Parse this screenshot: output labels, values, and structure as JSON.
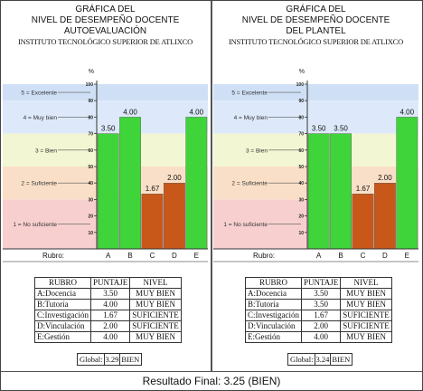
{
  "panels": [
    {
      "title_lines": [
        "GRÁFICA DEL",
        "NIVEL DE DESEMPEÑO DOCENTE",
        "AUTOEVALUACIÓN"
      ],
      "institution": "INSTITUTO TECNOLÓGICO SUPERIOR DE ATLIXCO",
      "table": {
        "headers": [
          "RUBRO",
          "PUNTAJE",
          "NIVEL"
        ],
        "rows": [
          [
            "A:Docencia",
            "3.50",
            "MUY BIEN"
          ],
          [
            "B:Tutoría",
            "4.00",
            "MUY BIEN"
          ],
          [
            "C:Investigación",
            "1.67",
            "SUFICIENTE"
          ],
          [
            "D:Vinculación",
            "2.00",
            "SUFICIENTE"
          ],
          [
            "E:Gestión",
            "4.00",
            "MUY BIEN"
          ]
        ]
      },
      "global": {
        "label": "Global:",
        "value": "3.29",
        "level": "BIEN"
      }
    },
    {
      "title_lines": [
        "GRÁFICA DEL",
        "NIVEL DE DESEMPEÑO DOCENTE",
        "DEL PLANTEL"
      ],
      "institution": "INSTITUTO TECNOLÓGICO SUPERIOR DE ATLIXCO",
      "table": {
        "headers": [
          "RUBRO",
          "PUNTAJE",
          "NIVEL"
        ],
        "rows": [
          [
            "A:Docencia",
            "3.50",
            "MUY BIEN"
          ],
          [
            "B:Tutoría",
            "3.50",
            "MUY BIEN"
          ],
          [
            "C:Investigación",
            "1.67",
            "SUFICIENTE"
          ],
          [
            "D:Vinculación",
            "2.00",
            "SUFICIENTE"
          ],
          [
            "E:Gestión",
            "4.00",
            "MUY BIEN"
          ]
        ]
      },
      "global": {
        "label": "Global:",
        "value": "3.24",
        "level": "BIEN"
      }
    }
  ],
  "final_result": "Resultado Final: 3.25 (BIEN)",
  "chart_data": [
    {
      "type": "bar",
      "categories": [
        "A",
        "B",
        "C",
        "D",
        "E"
      ],
      "values": [
        3.5,
        4.0,
        1.67,
        2.0,
        4.0
      ],
      "value_labels": [
        "3.50",
        "4.00",
        "1.67",
        "2.00",
        "4.00"
      ],
      "xlabel": "Rubro:",
      "ylabel": "%",
      "ylim": [
        0,
        100
      ],
      "y_per_score": 20,
      "yticks": [
        10,
        20,
        30,
        40,
        50,
        60,
        70,
        80,
        90,
        100
      ],
      "bands": [
        {
          "label": "5 = Excelente",
          "from": 90,
          "to": 100,
          "color": "#cfe0f6"
        },
        {
          "label": "4 = Muy bien",
          "from": 70,
          "to": 90,
          "color": "#dde9fa"
        },
        {
          "label": "3 = Bien",
          "from": 50,
          "to": 70,
          "color": "#f3f6d2"
        },
        {
          "label": "2 = Suficiente",
          "from": 30,
          "to": 50,
          "color": "#f9dfc7"
        },
        {
          "label": "1 = No suficiente",
          "from": 0,
          "to": 30,
          "color": "#f8cfcf"
        }
      ],
      "high_color": "#3fd43a",
      "low_color": "#c8581a"
    },
    {
      "type": "bar",
      "categories": [
        "A",
        "B",
        "C",
        "D",
        "E"
      ],
      "values": [
        3.5,
        3.5,
        1.67,
        2.0,
        4.0
      ],
      "value_labels": [
        "3.50",
        "3.50",
        "1.67",
        "2.00",
        "4.00"
      ],
      "xlabel": "Rubro:",
      "ylabel": "%",
      "ylim": [
        0,
        100
      ],
      "y_per_score": 20,
      "yticks": [
        10,
        20,
        30,
        40,
        50,
        60,
        70,
        80,
        90,
        100
      ],
      "bands": [
        {
          "label": "5 = Excelente",
          "from": 90,
          "to": 100,
          "color": "#cfe0f6"
        },
        {
          "label": "4 = Muy bien",
          "from": 70,
          "to": 90,
          "color": "#dde9fa"
        },
        {
          "label": "3 = Bien",
          "from": 50,
          "to": 70,
          "color": "#f3f6d2"
        },
        {
          "label": "2 = Suficiente",
          "from": 30,
          "to": 50,
          "color": "#f9dfc7"
        },
        {
          "label": "1 = No suficiente",
          "from": 0,
          "to": 30,
          "color": "#f8cfcf"
        }
      ],
      "high_color": "#3fd43a",
      "low_color": "#c8581a"
    }
  ]
}
